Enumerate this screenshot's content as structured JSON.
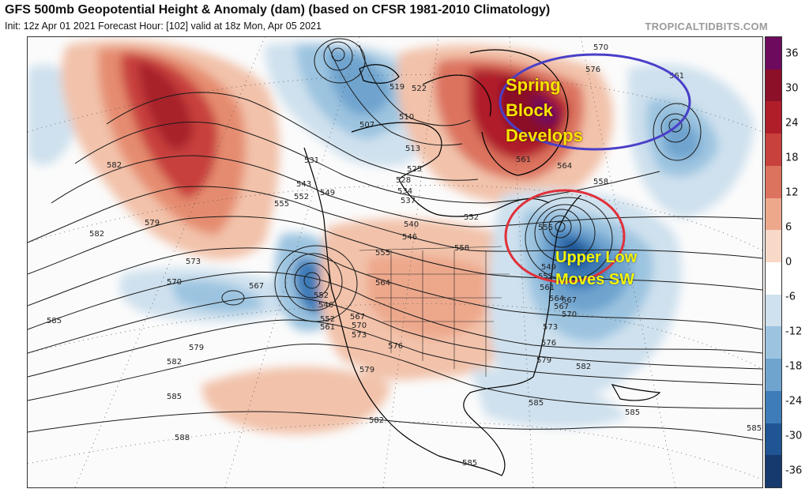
{
  "header": {
    "title": "GFS 500mb Geopotential Height & Anomaly (dam) (based on CFSR 1981-2010 Climatology)",
    "subtitle": "Init: 12z Apr 01 2021   Forecast Hour: [102]   valid at 18z Mon, Apr 05 2021",
    "brand": "TROPICALTIDBITS.COM"
  },
  "annotations": {
    "block_line1": "Spring",
    "block_line2": "Block",
    "block_line3": "Develops",
    "low_line1": "Upper Low",
    "low_line2": "Moves SW",
    "block_circle_color": "#4a3fc8",
    "low_circle_color": "#e0303a"
  },
  "colorbar": {
    "labels": [
      "36",
      "30",
      "24",
      "18",
      "12",
      "6",
      "0",
      "-6",
      "-12",
      "-18",
      "-24",
      "-30",
      "-36"
    ],
    "colors": [
      "#6e0a5e",
      "#8b1028",
      "#b01e2a",
      "#c8413c",
      "#dc735e",
      "#eda88c",
      "#f8d8c6",
      "#ffffff",
      "#cfe1ee",
      "#9cc4e0",
      "#6fa4cf",
      "#3e7cb8",
      "#1f5593",
      "#173a6e"
    ]
  },
  "contour_labels": [
    "582",
    "579",
    "582",
    "573",
    "570",
    "567",
    "579",
    "582",
    "585",
    "585",
    "588",
    "555",
    "552",
    "531",
    "543",
    "549",
    "552",
    "546",
    "552",
    "561",
    "567",
    "570",
    "573",
    "576",
    "579",
    "582",
    "585",
    "564",
    "555",
    "522",
    "510",
    "513",
    "507",
    "519",
    "525",
    "528",
    "534",
    "537",
    "540",
    "546",
    "552",
    "558",
    "561",
    "564",
    "567",
    "570",
    "573",
    "576",
    "579",
    "582",
    "585",
    "558",
    "570",
    "576",
    "561",
    "561",
    "567",
    "549",
    "552",
    "555",
    "564",
    "585",
    "585"
  ]
}
